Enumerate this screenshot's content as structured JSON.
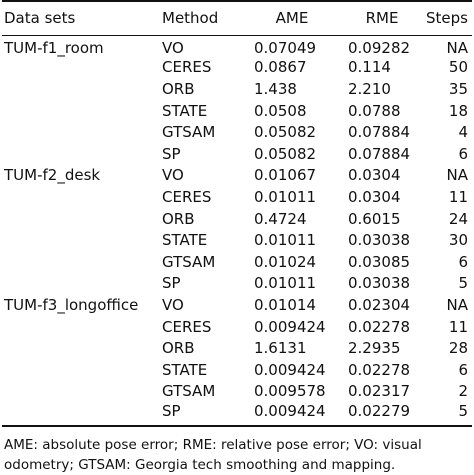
{
  "table": {
    "headers": {
      "dataset": "Data sets",
      "method": "Method",
      "ame": "AME",
      "rme": "RME",
      "steps": "Steps"
    },
    "rows": [
      {
        "dataset": "TUM-f1_room",
        "method": "VO",
        "ame": "0.07049",
        "rme": "0.09282",
        "steps": "NA"
      },
      {
        "dataset": "",
        "method": "CERES",
        "ame": "0.0867",
        "rme": "0.114",
        "steps": "50"
      },
      {
        "dataset": "",
        "method": "ORB",
        "ame": "1.438",
        "rme": "2.210",
        "steps": "35"
      },
      {
        "dataset": "",
        "method": "STATE",
        "ame": "0.0508",
        "rme": "0.0788",
        "steps": "18"
      },
      {
        "dataset": "",
        "method": "GTSAM",
        "ame": "0.05082",
        "rme": "0.07884",
        "steps": "4"
      },
      {
        "dataset": "",
        "method": "SP",
        "ame": "0.05082",
        "rme": "0.07884",
        "steps": "6"
      },
      {
        "dataset": "TUM-f2_desk",
        "method": "VO",
        "ame": "0.01067",
        "rme": "0.0304",
        "steps": "NA"
      },
      {
        "dataset": "",
        "method": "CERES",
        "ame": "0.01011",
        "rme": "0.0304",
        "steps": "11"
      },
      {
        "dataset": "",
        "method": "ORB",
        "ame": "0.4724",
        "rme": "0.6015",
        "steps": "24"
      },
      {
        "dataset": "",
        "method": "STATE",
        "ame": "0.01011",
        "rme": "0.03038",
        "steps": "30"
      },
      {
        "dataset": "",
        "method": "GTSAM",
        "ame": "0.01024",
        "rme": "0.03085",
        "steps": "6"
      },
      {
        "dataset": "",
        "method": "SP",
        "ame": "0.01011",
        "rme": "0.03038",
        "steps": "5"
      },
      {
        "dataset": "TUM-f3_longoffice",
        "method": "VO",
        "ame": "0.01014",
        "rme": "0.02304",
        "steps": "NA"
      },
      {
        "dataset": "",
        "method": "CERES",
        "ame": "0.009424",
        "rme": "0.02278",
        "steps": "11"
      },
      {
        "dataset": "",
        "method": "ORB",
        "ame": "1.6131",
        "rme": "2.2935",
        "steps": "28"
      },
      {
        "dataset": "",
        "method": "STATE",
        "ame": "0.009424",
        "rme": "0.02278",
        "steps": "6"
      },
      {
        "dataset": "",
        "method": "GTSAM",
        "ame": "0.009578",
        "rme": "0.02317",
        "steps": "2"
      },
      {
        "dataset": "",
        "method": "SP",
        "ame": "0.009424",
        "rme": "0.02279",
        "steps": "5"
      }
    ]
  },
  "footnote": "AME: absolute pose error; RME: relative pose error; VO: visual odometry; GTSAM: Georgia tech smoothing and mapping."
}
